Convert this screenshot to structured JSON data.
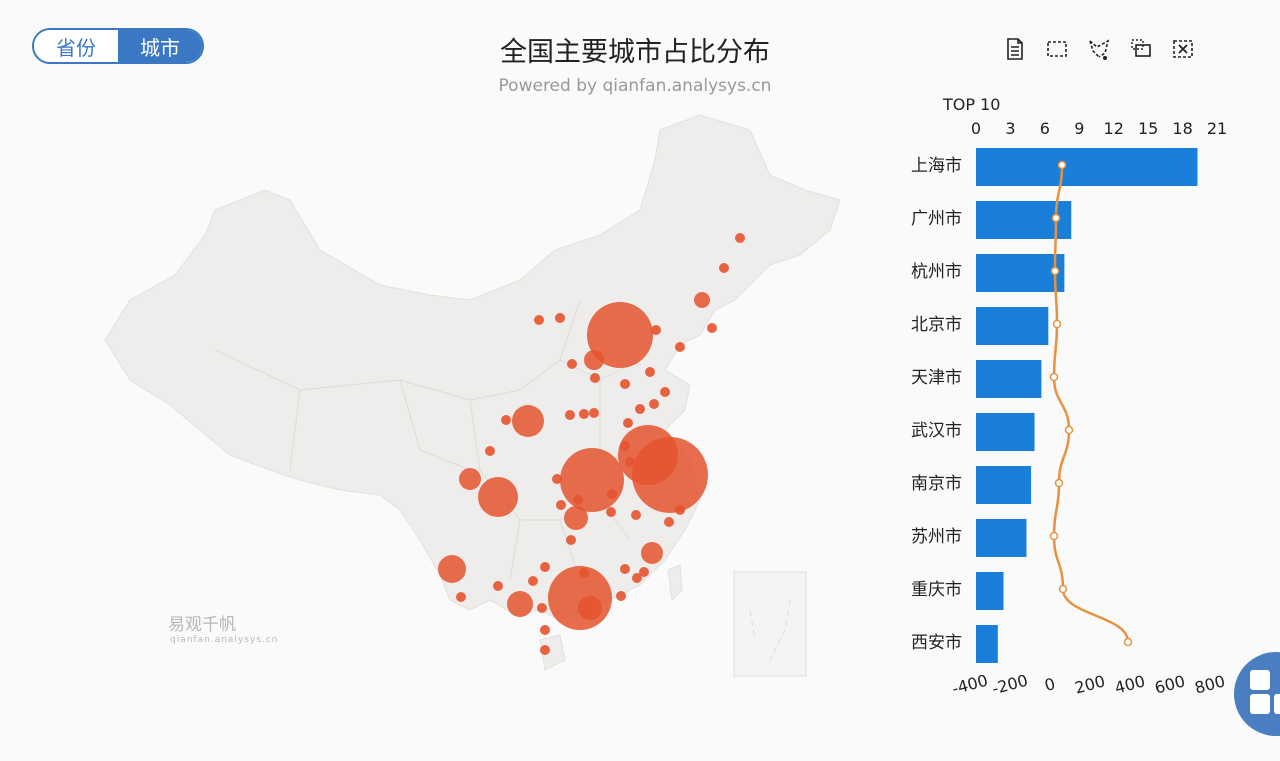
{
  "toggle": {
    "options": [
      "省份",
      "城市"
    ],
    "selected": "城市"
  },
  "header": {
    "title": "全国主要城市占比分布",
    "subtitle": "Powered by qianfan.analysys.cn"
  },
  "toolbox": [
    "data-view-icon",
    "rect-select-icon",
    "lasso-select-icon",
    "keep-selected-icon",
    "clear-select-icon"
  ],
  "watermark": {
    "name": "易观千帆",
    "url": "qianfan.analysys.cn"
  },
  "colors": {
    "bar": "#1a7fd9",
    "line": "#e8913f",
    "bubble": "#e4532f",
    "map": "#eeedeb"
  },
  "chart_data": {
    "type": "bar",
    "title": "TOP 10",
    "categories": [
      "上海市",
      "广州市",
      "杭州市",
      "北京市",
      "天津市",
      "武汉市",
      "南京市",
      "苏州市",
      "重庆市",
      "西安市"
    ],
    "series": [
      {
        "type": "bar",
        "values": [
          19.3,
          8.3,
          7.7,
          6.3,
          5.7,
          5.1,
          4.8,
          4.4,
          2.4,
          1.9
        ]
      },
      {
        "type": "line",
        "values": [
          60,
          30,
          25,
          35,
          20,
          95,
          45,
          20,
          65,
          390
        ]
      }
    ],
    "x_axis_top": {
      "ticks": [
        "0",
        "3",
        "6",
        "9",
        "12",
        "15",
        "18",
        "21"
      ],
      "range": [
        0,
        21
      ]
    },
    "x_axis_bottom": {
      "ticks": [
        "-400",
        "-200",
        "0",
        "200",
        "400",
        "600",
        "800"
      ],
      "range": [
        -400,
        800
      ]
    }
  }
}
